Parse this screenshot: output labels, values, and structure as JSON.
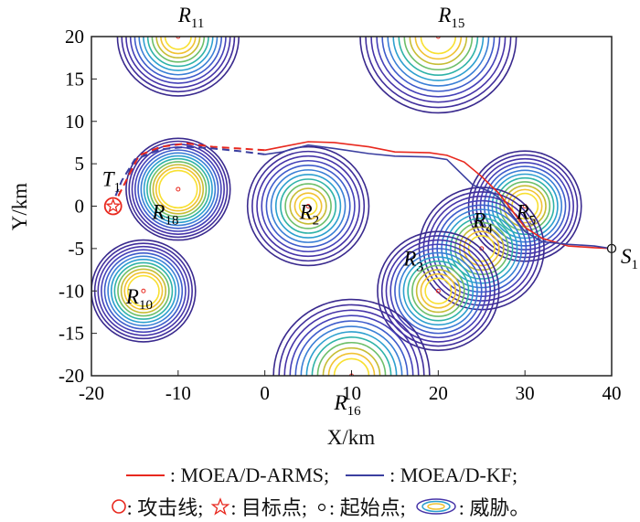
{
  "chart_data": {
    "type": "contour",
    "xlabel": "X/km",
    "ylabel": "Y/km",
    "xlim": [
      -20,
      40
    ],
    "ylim": [
      -20,
      20
    ],
    "xticks": [
      -20,
      -10,
      0,
      10,
      20,
      30,
      40
    ],
    "yticks": [
      -20,
      -15,
      -10,
      -5,
      0,
      5,
      10,
      15,
      20
    ],
    "threats": [
      {
        "name": "R",
        "sub": "11",
        "x": -10,
        "y": 20,
        "r": 7,
        "rin": 1.5
      },
      {
        "name": "R",
        "sub": "15",
        "x": 20,
        "y": 20,
        "r": 9,
        "rin": 2
      },
      {
        "name": "R",
        "sub": "18",
        "x": -10,
        "y": 2,
        "r": 6,
        "rin": 2.2
      },
      {
        "name": "R",
        "sub": "2",
        "x": 5,
        "y": 0,
        "r": 7,
        "rin": 1
      },
      {
        "name": "R",
        "sub": "5",
        "x": 30,
        "y": 0,
        "r": 6.5,
        "rin": 1.5
      },
      {
        "name": "R",
        "sub": "4",
        "x": 25,
        "y": -5,
        "r": 7.2,
        "rin": 1.5
      },
      {
        "name": "R",
        "sub": "3",
        "x": 20,
        "y": -10,
        "r": 7,
        "rin": 1.5
      },
      {
        "name": "R",
        "sub": "10",
        "x": -14,
        "y": -10,
        "r": 6,
        "rin": 1.8
      },
      {
        "name": "R",
        "sub": "16",
        "x": 10,
        "y": -20,
        "r": 9,
        "rin": 2
      }
    ],
    "contour_colors": [
      "#3a2a8e",
      "#412f9c",
      "#4634a8",
      "#4541b8",
      "#3e5ccb",
      "#3a7fd6",
      "#2c9fcf",
      "#2fb3a8",
      "#6dbf6a",
      "#c6bd35",
      "#f1c232",
      "#f8e031"
    ],
    "series": [
      {
        "name": "MOEA/D-ARMS",
        "color": "#e8281e",
        "points": [
          [
            40,
            -5
          ],
          [
            38,
            -4.9
          ],
          [
            35,
            -4.7
          ],
          [
            32,
            -3.8
          ],
          [
            30,
            -2.5
          ],
          [
            28.5,
            -0.5
          ],
          [
            27,
            1.5
          ],
          [
            25,
            3.5
          ],
          [
            23,
            5.2
          ],
          [
            21,
            6
          ],
          [
            19,
            6.3
          ],
          [
            15,
            6.4
          ],
          [
            12,
            7
          ],
          [
            8,
            7.5
          ],
          [
            5,
            7.6
          ],
          [
            2,
            7
          ],
          [
            0,
            6.6
          ]
        ],
        "dashed": [
          [
            0,
            6.6
          ],
          [
            -3,
            6.8
          ],
          [
            -6,
            7
          ],
          [
            -9,
            7.4
          ],
          [
            -12,
            7
          ],
          [
            -14.5,
            6
          ],
          [
            -16,
            3
          ],
          [
            -17,
            1
          ]
        ]
      },
      {
        "name": "MOEA/D-KF",
        "color": "#3b3fa0",
        "points": [
          [
            40,
            -5
          ],
          [
            38,
            -4.7
          ],
          [
            35,
            -4.5
          ],
          [
            32,
            -4.2
          ],
          [
            30,
            -3
          ],
          [
            28.5,
            -1
          ],
          [
            27,
            1
          ],
          [
            26,
            1.7
          ],
          [
            24,
            2.5
          ],
          [
            23,
            3.5
          ],
          [
            21,
            5.5
          ],
          [
            19,
            5.8
          ],
          [
            15,
            5.9
          ],
          [
            12,
            6.2
          ],
          [
            8,
            6.8
          ],
          [
            5,
            7.2
          ],
          [
            2,
            6.4
          ],
          [
            0,
            6.1
          ]
        ],
        "dashed": [
          [
            0,
            6.1
          ],
          [
            -3,
            6.5
          ],
          [
            -6,
            6.8
          ],
          [
            -9,
            7
          ],
          [
            -12,
            6.7
          ],
          [
            -15,
            5.5
          ],
          [
            -16.5,
            3
          ],
          [
            -17.3,
            1
          ]
        ]
      }
    ],
    "target": {
      "name": "T",
      "sub": "1",
      "x": -17.5,
      "y": 0
    },
    "start": {
      "name": "S",
      "sub": "1",
      "x": 40,
      "y": -5
    }
  },
  "legend": {
    "line1": [
      {
        "label": ": MOEA/D-ARMS;",
        "color": "#e8281e"
      },
      {
        "label": ": MOEA/D-KF;",
        "color": "#3b3fa0"
      }
    ],
    "line2": {
      "attack": ": 攻击线;",
      "target": ": 目标点;",
      "start": ": 起始点;",
      "threat": ": 威胁。"
    }
  }
}
